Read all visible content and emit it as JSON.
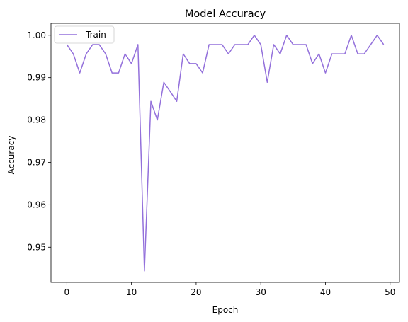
{
  "chart_data": {
    "type": "line",
    "title": "Model Accuracy",
    "xlabel": "Epoch",
    "ylabel": "Accuracy",
    "xlim": [
      -2.45,
      51.45
    ],
    "ylim": [
      0.9417,
      1.0028
    ],
    "xticks": [
      0,
      10,
      20,
      30,
      40,
      50
    ],
    "yticks": [
      0.95,
      0.96,
      0.97,
      0.98,
      0.99,
      1.0
    ],
    "ytick_labels": [
      "0.95",
      "0.96",
      "0.97",
      "0.98",
      "0.99",
      "1.00"
    ],
    "grid": false,
    "legend": {
      "placement": "top-left"
    },
    "series": [
      {
        "name": "Train",
        "color": "#9370DB",
        "x": [
          0,
          1,
          2,
          3,
          4,
          5,
          6,
          7,
          8,
          9,
          10,
          11,
          12,
          13,
          14,
          15,
          16,
          17,
          18,
          19,
          20,
          21,
          22,
          23,
          24,
          25,
          26,
          27,
          28,
          29,
          30,
          31,
          32,
          33,
          34,
          35,
          36,
          37,
          38,
          39,
          40,
          41,
          42,
          43,
          44,
          45,
          46,
          47,
          48,
          49
        ],
        "y": [
          0.9978,
          0.9956,
          0.9911,
          0.9956,
          0.9978,
          0.9978,
          0.9956,
          0.9911,
          0.9911,
          0.9956,
          0.9933,
          0.9978,
          0.9444,
          0.9844,
          0.98,
          0.9889,
          0.9867,
          0.9844,
          0.9956,
          0.9933,
          0.9933,
          0.9911,
          0.9978,
          0.9978,
          0.9978,
          0.9956,
          0.9978,
          0.9978,
          0.9978,
          1.0,
          0.9978,
          0.9889,
          0.9978,
          0.9956,
          1.0,
          0.9978,
          0.9978,
          0.9978,
          0.9933,
          0.9956,
          0.9911,
          0.9956,
          0.9956,
          0.9956,
          1.0,
          0.9956,
          0.9956,
          0.9978,
          1.0,
          0.9978
        ]
      }
    ]
  }
}
